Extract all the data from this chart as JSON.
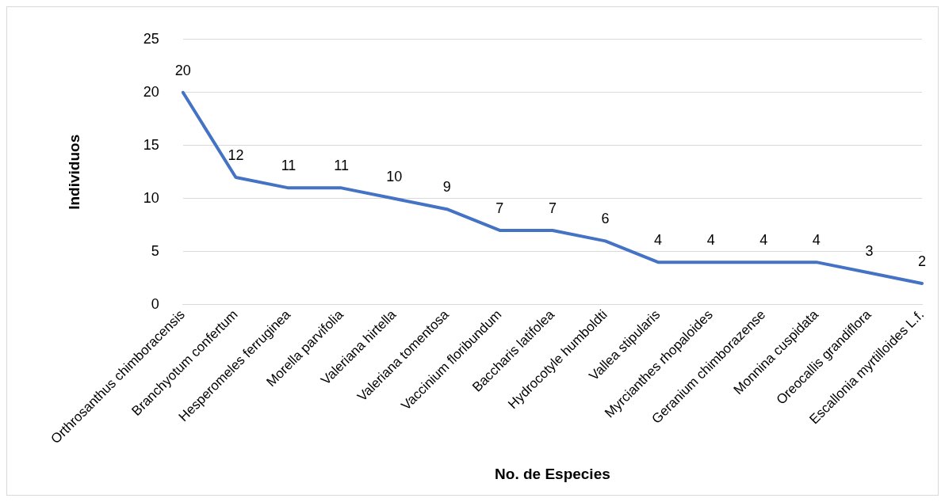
{
  "chart_data": {
    "type": "line",
    "xlabel": "No. de Especies",
    "ylabel": "Individuos",
    "categories": [
      "Orthrosanthus chimboracensis",
      "Branchyotum confertum",
      "Hesperomeles ferruginea",
      "Morella parvifolia",
      "Valeriana hirtella",
      "Valeriana tomentosa",
      "Vaccinium floribundum",
      "Baccharis latifolea",
      "Hydrocotyle humboldti",
      "Vallea stipularis",
      "Myrcianthes rhopaloides",
      "Geranium chimborazense",
      "Monnina cuspidata",
      "Oreocallis grandiflora",
      "Escallonia myrtilloides L.f."
    ],
    "series": [
      {
        "color": "#4472c4",
        "values": [
          20,
          12,
          11,
          11,
          10,
          9,
          7,
          7,
          6,
          4,
          4,
          4,
          4,
          3,
          2
        ]
      }
    ],
    "ylim": [
      0,
      25
    ],
    "yticks": [
      0,
      5,
      10,
      15,
      20,
      25
    ],
    "grid": "y",
    "legend": false,
    "marker": "none",
    "line_style": "solid",
    "data_labels": true
  }
}
